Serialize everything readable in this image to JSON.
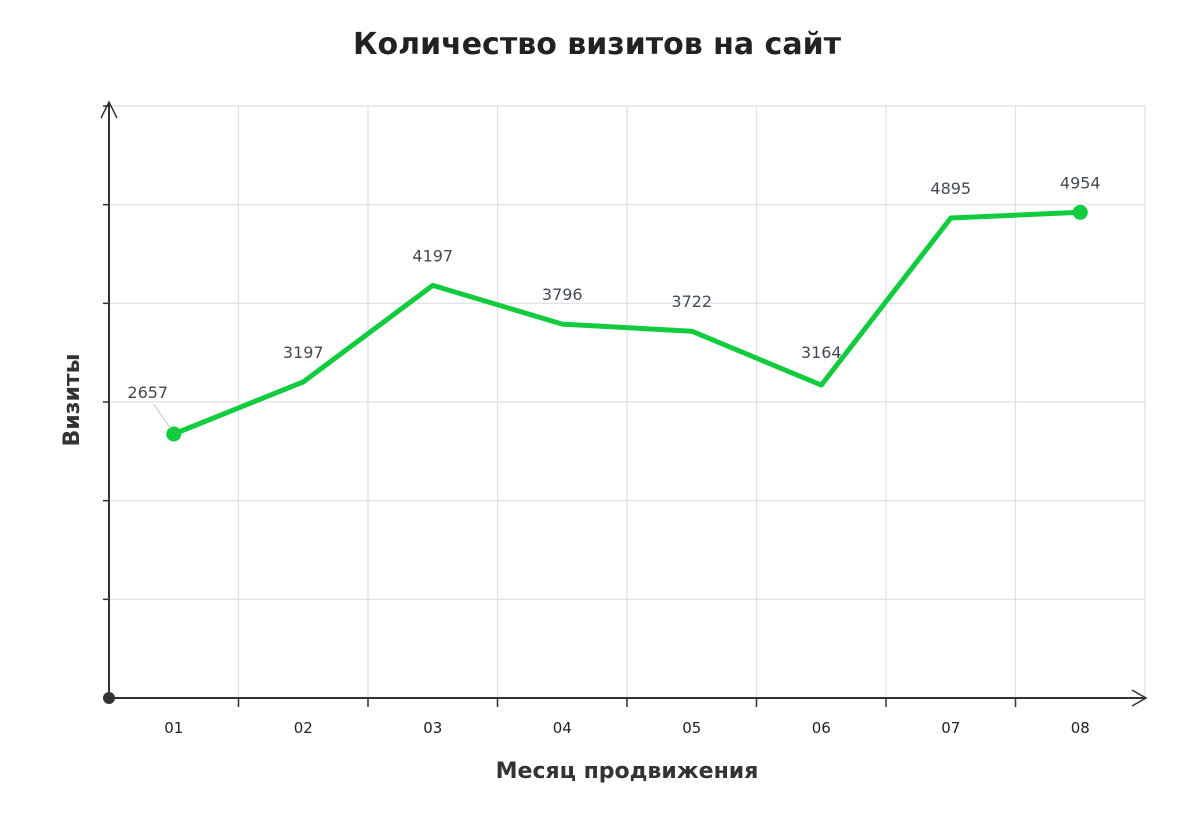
{
  "chart_data": {
    "type": "line",
    "title": "Количество визитов на сайт",
    "xlabel": "Месяц продвижения",
    "ylabel": "Визиты",
    "categories": [
      "01",
      "02",
      "03",
      "04",
      "05",
      "06",
      "07",
      "08"
    ],
    "series": [
      {
        "values": [
          2657,
          3197,
          4197,
          3796,
          3722,
          3164,
          4895,
          4954
        ],
        "color": "#11cc3e"
      }
    ],
    "data_labels": [
      "2657",
      "3197",
      "4197",
      "3796",
      "3722",
      "3164",
      "4895",
      "4954"
    ],
    "y_tick_labels_shown": false,
    "markers_on_points": [
      "01",
      "08"
    ],
    "grid": true,
    "grid_color": "#dde0e6",
    "axis_color": "#333333"
  }
}
